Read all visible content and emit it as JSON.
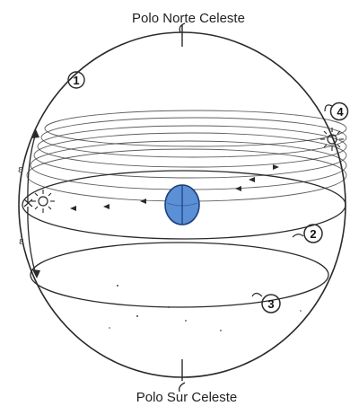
{
  "labels": {
    "north_pole": "Polo Norte Celeste",
    "south_pole": "Polo Sur Celeste",
    "epsilon": "ε"
  },
  "markers": {
    "m1": "1",
    "m2": "2",
    "m3": "3",
    "m4": "4"
  },
  "colors": {
    "ink": "#2a2a2a",
    "earth": "#5b8fd6",
    "earth_dark": "#1d3f7a"
  },
  "icons": {
    "sun": "sun-icon",
    "earth": "earth-icon"
  }
}
